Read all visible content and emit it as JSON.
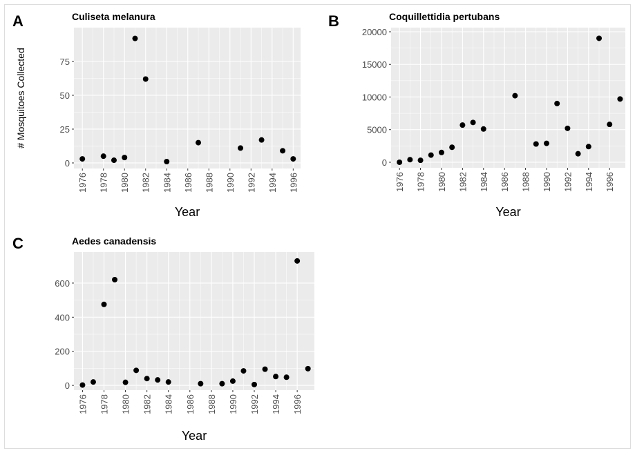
{
  "chart_data": [
    {
      "type": "scatter",
      "label": "A",
      "title": "Culiseta melanura",
      "xlabel": "Year",
      "ylabel": "# Mosquitoes Collected",
      "x": [
        1976,
        1978,
        1979,
        1980,
        1981,
        1982,
        1984,
        1987,
        1991,
        1993,
        1995,
        1996
      ],
      "values": [
        3,
        5,
        2,
        4,
        92,
        62,
        1,
        15,
        11,
        17,
        9,
        3
      ],
      "xlim": [
        1975.2,
        1996.7
      ],
      "ylim": [
        -4.1,
        100
      ],
      "xticks": [
        1976,
        1978,
        1980,
        1982,
        1984,
        1986,
        1988,
        1990,
        1992,
        1994,
        1996
      ],
      "yticks": [
        0,
        25,
        50,
        75
      ],
      "color": "#000000",
      "grid": true
    },
    {
      "type": "scatter",
      "label": "B",
      "title": "Coquillettidia pertubans",
      "xlabel": "Year",
      "x": [
        1976,
        1977,
        1978,
        1979,
        1980,
        1981,
        1982,
        1983,
        1984,
        1987,
        1989,
        1990,
        1991,
        1992,
        1993,
        1994,
        1995,
        1996,
        1997
      ],
      "values": [
        0,
        400,
        300,
        1100,
        1500,
        2300,
        5700,
        6100,
        5100,
        10200,
        2800,
        2900,
        9000,
        5200,
        1300,
        2400,
        19000,
        5800,
        9700
      ],
      "xlim": [
        1975.2,
        1997.5
      ],
      "ylim": [
        -850,
        20635
      ],
      "xticks": [
        1976,
        1978,
        1980,
        1982,
        1984,
        1986,
        1988,
        1990,
        1992,
        1994,
        1996
      ],
      "yticks": [
        0,
        5000,
        10000,
        15000,
        20000
      ],
      "color": "#000000",
      "grid": true
    },
    {
      "type": "scatter",
      "label": "C",
      "title": "Aedes canadensis",
      "xlabel": "Year",
      "x": [
        1976,
        1977,
        1978,
        1979,
        1980,
        1981,
        1982,
        1983,
        1984,
        1987,
        1989,
        1990,
        1991,
        1992,
        1993,
        1994,
        1995,
        1996,
        1997
      ],
      "values": [
        2,
        20,
        475,
        620,
        18,
        88,
        40,
        32,
        20,
        10,
        10,
        25,
        85,
        5,
        95,
        52,
        48,
        730,
        98
      ],
      "xlim": [
        1975.2,
        1997.6
      ],
      "ylim": [
        -28,
        782
      ],
      "xticks": [
        1976,
        1978,
        1980,
        1982,
        1984,
        1986,
        1988,
        1990,
        1992,
        1994,
        1996
      ],
      "yticks": [
        0,
        200,
        400,
        600
      ],
      "color": "#000000",
      "grid": true
    }
  ]
}
